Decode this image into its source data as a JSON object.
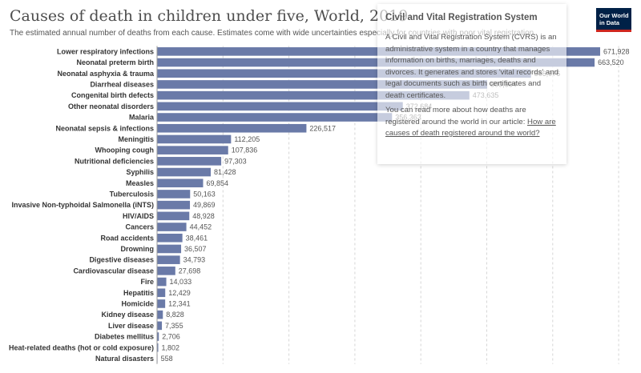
{
  "header": {
    "title": "Causes of death in children under five, World, 2019",
    "subtitle": "The estimated annual number of deaths from each cause. Estimates come with wide uncertainties especially for countries with poor vital registration.",
    "logo_line1": "Our World",
    "logo_line2": "in Data"
  },
  "colors": {
    "bar": "#6a7aa8",
    "grid": "#d6d6d6",
    "logo_bg": "#002147",
    "logo_accent": "#ce261e"
  },
  "tooltip": {
    "title": "Civil and Vital Registration System",
    "paragraph1": "A Civil and Vital Registration System (CVRS) is an administrative system in a country that manages information on births, marriages, deaths and divorces. It generates and stores 'vital records' and legal documents such as birth certificates and death certificates.",
    "paragraph2_prefix": "You can read more about how deaths are registered around the world in our article: ",
    "link_text": "How are causes of death registered around the world?"
  },
  "chart_data": {
    "type": "bar",
    "orientation": "horizontal",
    "title": "Causes of death in children under five, World, 2019",
    "grid": true,
    "categories": [
      "Lower respiratory infections",
      "Neonatal preterm birth",
      "Neonatal asphyxia & trauma",
      "Diarrheal diseases",
      "Congenital birth defects",
      "Other neonatal disorders",
      "Malaria",
      "Neonatal sepsis & infections",
      "Meningitis",
      "Whooping cough",
      "Nutritional deficiencies",
      "Syphilis",
      "Measles",
      "Tuberculosis",
      "Invasive Non-typhoidal Salmonella (iNTS)",
      "HIV/AIDS",
      "Cancers",
      "Road accidents",
      "Drowning",
      "Digestive diseases",
      "Cardiovascular disease",
      "Fire",
      "Hepatitis",
      "Homicide",
      "Kidney disease",
      "Liver disease",
      "Diabetes mellitus",
      "Heat-related deaths (hot or cold exposure)",
      "Natural disasters"
    ],
    "values": [
      671928,
      663520,
      566976,
      500664,
      473635,
      372684,
      356363,
      226517,
      112205,
      107836,
      97303,
      81428,
      69854,
      50163,
      49869,
      48928,
      44452,
      38461,
      36507,
      34793,
      27698,
      14033,
      12429,
      12341,
      8828,
      7355,
      2706,
      1802,
      558
    ],
    "value_labels": [
      "671,928",
      "663,520",
      "566,976",
      "500,664",
      "473,635",
      "372,684",
      "356,363",
      "226,517",
      "112,205",
      "107,836",
      "97,303",
      "81,428",
      "69,854",
      "50,163",
      "49,869",
      "48,928",
      "44,452",
      "38,461",
      "36,507",
      "34,793",
      "27,698",
      "14,033",
      "12,429",
      "12,341",
      "8,828",
      "7,355",
      "2,706",
      "1,802",
      "558"
    ],
    "xlim": [
      0,
      700000
    ]
  }
}
